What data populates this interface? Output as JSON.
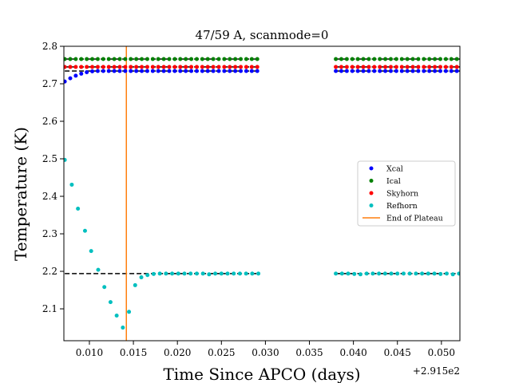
{
  "chart_data": {
    "type": "scatter",
    "title": "47/59 A, scanmode=0",
    "xlabel": "Time Since APCO (days)",
    "ylabel": "Temperature (K)",
    "x_offset_label": "+2.915e2",
    "xlim": [
      0.0071,
      0.0521
    ],
    "ylim": [
      2.015,
      2.8
    ],
    "x_ticks": [
      "0.010",
      "0.015",
      "0.020",
      "0.025",
      "0.030",
      "0.035",
      "0.040",
      "0.045",
      "0.050"
    ],
    "y_ticks": [
      "2.1",
      "2.2",
      "2.3",
      "2.4",
      "2.5",
      "2.6",
      "2.7",
      "2.8"
    ],
    "grid": false,
    "legend_position": "center-right",
    "series": [
      {
        "name": "Xcal",
        "color": "#0000ff",
        "segments": [
          {
            "x_start": 0.0072,
            "x_end": 0.0292,
            "step": 0.000625,
            "start_value": 2.706,
            "plateau": 2.734,
            "decay_points": 6
          },
          {
            "x_start": 0.038,
            "x_end": 0.052,
            "step": 0.000625,
            "start_value": 2.734,
            "plateau": 2.734,
            "decay_points": 0
          }
        ]
      },
      {
        "name": "Ical",
        "color": "#008000",
        "segments": [
          {
            "x_start": 0.0072,
            "x_end": 0.0292,
            "step": 0.000625,
            "start_value": 2.766,
            "plateau": 2.766,
            "decay_points": 0
          },
          {
            "x_start": 0.038,
            "x_end": 0.052,
            "step": 0.000625,
            "start_value": 2.766,
            "plateau": 2.766,
            "decay_points": 0
          }
        ]
      },
      {
        "name": "Skyhorn",
        "color": "#ff0000",
        "segments": [
          {
            "x_start": 0.0072,
            "x_end": 0.0292,
            "step": 0.000625,
            "start_value": 2.745,
            "plateau": 2.745,
            "decay_points": 0
          },
          {
            "x_start": 0.038,
            "x_end": 0.052,
            "step": 0.000625,
            "start_value": 2.745,
            "plateau": 2.745,
            "decay_points": 0
          }
        ]
      },
      {
        "name": "Refhorn",
        "color": "#00bfbf",
        "x": [
          0.0072,
          0.008,
          0.0087,
          0.0095,
          0.0102,
          0.011,
          0.0117,
          0.0124,
          0.0131,
          0.0138,
          0.0145,
          0.0152,
          0.0159,
          0.0166,
          0.0173,
          0.018,
          0.0187,
          0.0194,
          0.0201,
          0.0208,
          0.0215,
          0.0222,
          0.0229,
          0.0236,
          0.0243,
          0.025,
          0.0257,
          0.0264,
          0.0271,
          0.0278,
          0.0285,
          0.0292,
          0.038,
          0.0387,
          0.0394,
          0.0401,
          0.0408,
          0.0415,
          0.0422,
          0.0429,
          0.0436,
          0.0443,
          0.045,
          0.0457,
          0.0464,
          0.0471,
          0.0478,
          0.0485,
          0.0492,
          0.0499,
          0.0506,
          0.0513,
          0.052
        ],
        "values": [
          2.497,
          2.431,
          2.367,
          2.308,
          2.254,
          2.204,
          2.158,
          2.118,
          2.082,
          2.05,
          2.092,
          2.163,
          2.184,
          2.19,
          2.193,
          2.194,
          2.194,
          2.194,
          2.194,
          2.194,
          2.194,
          2.194,
          2.194,
          2.192,
          2.194,
          2.194,
          2.194,
          2.194,
          2.194,
          2.194,
          2.194,
          2.194,
          2.194,
          2.194,
          2.194,
          2.193,
          2.192,
          2.194,
          2.194,
          2.194,
          2.194,
          2.194,
          2.194,
          2.194,
          2.194,
          2.194,
          2.194,
          2.194,
          2.194,
          2.193,
          2.194,
          2.192,
          2.194
        ]
      },
      {
        "name": "End of Plateau",
        "color": "#ff7f0e",
        "type": "vline",
        "x": 0.0142
      }
    ],
    "reference_lines": [
      {
        "y": 2.766,
        "segments": [
          [
            0.0072,
            0.0292
          ],
          [
            0.038,
            0.0521
          ]
        ]
      },
      {
        "y": 2.745,
        "segments": [
          [
            0.0072,
            0.0292
          ],
          [
            0.038,
            0.0521
          ]
        ]
      },
      {
        "y": 2.734,
        "segments": [
          [
            0.0072,
            0.0292
          ],
          [
            0.038,
            0.0521
          ]
        ]
      },
      {
        "y": 2.194,
        "segments": [
          [
            0.0072,
            0.0292
          ],
          [
            0.038,
            0.0521
          ]
        ]
      }
    ]
  }
}
